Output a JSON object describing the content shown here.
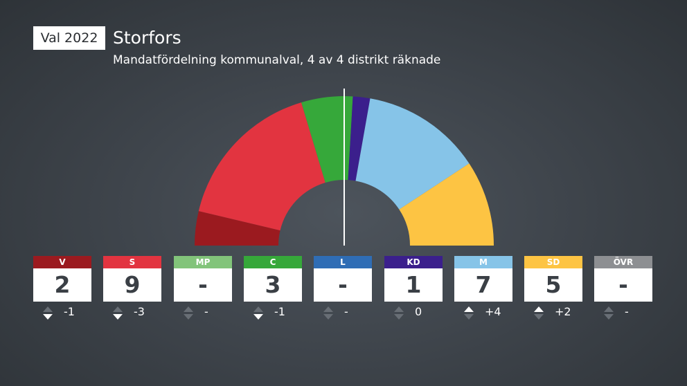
{
  "header": {
    "badge": "Val 2022",
    "title": "Storfors",
    "subtitle": "Mandatfördelning kommunalval, 4 av 4 distrikt räknade"
  },
  "chart_data": {
    "type": "hemicycle",
    "total_seats": 27,
    "parties": [
      {
        "code": "V",
        "seats": 2,
        "seats_label": "2",
        "change": -1,
        "change_label": "-1",
        "color": "#9b1a1f"
      },
      {
        "code": "S",
        "seats": 9,
        "seats_label": "9",
        "change": -3,
        "change_label": "-3",
        "color": "#e23440"
      },
      {
        "code": "MP",
        "seats": 0,
        "seats_label": "-",
        "change": null,
        "change_label": "-",
        "color": "#82c47a"
      },
      {
        "code": "C",
        "seats": 3,
        "seats_label": "3",
        "change": -1,
        "change_label": "-1",
        "color": "#36a83a"
      },
      {
        "code": "L",
        "seats": 0,
        "seats_label": "-",
        "change": null,
        "change_label": "-",
        "color": "#2f6db5"
      },
      {
        "code": "KD",
        "seats": 1,
        "seats_label": "1",
        "change": 0,
        "change_label": "0",
        "color": "#3b1f8c"
      },
      {
        "code": "M",
        "seats": 7,
        "seats_label": "7",
        "change": 4,
        "change_label": "+4",
        "color": "#86c4e8"
      },
      {
        "code": "SD",
        "seats": 5,
        "seats_label": "5",
        "change": 2,
        "change_label": "+2",
        "color": "#fdc443"
      },
      {
        "code": "ÖVR",
        "seats": 0,
        "seats_label": "-",
        "change": null,
        "change_label": "-",
        "color": "#8d8f92"
      }
    ]
  }
}
